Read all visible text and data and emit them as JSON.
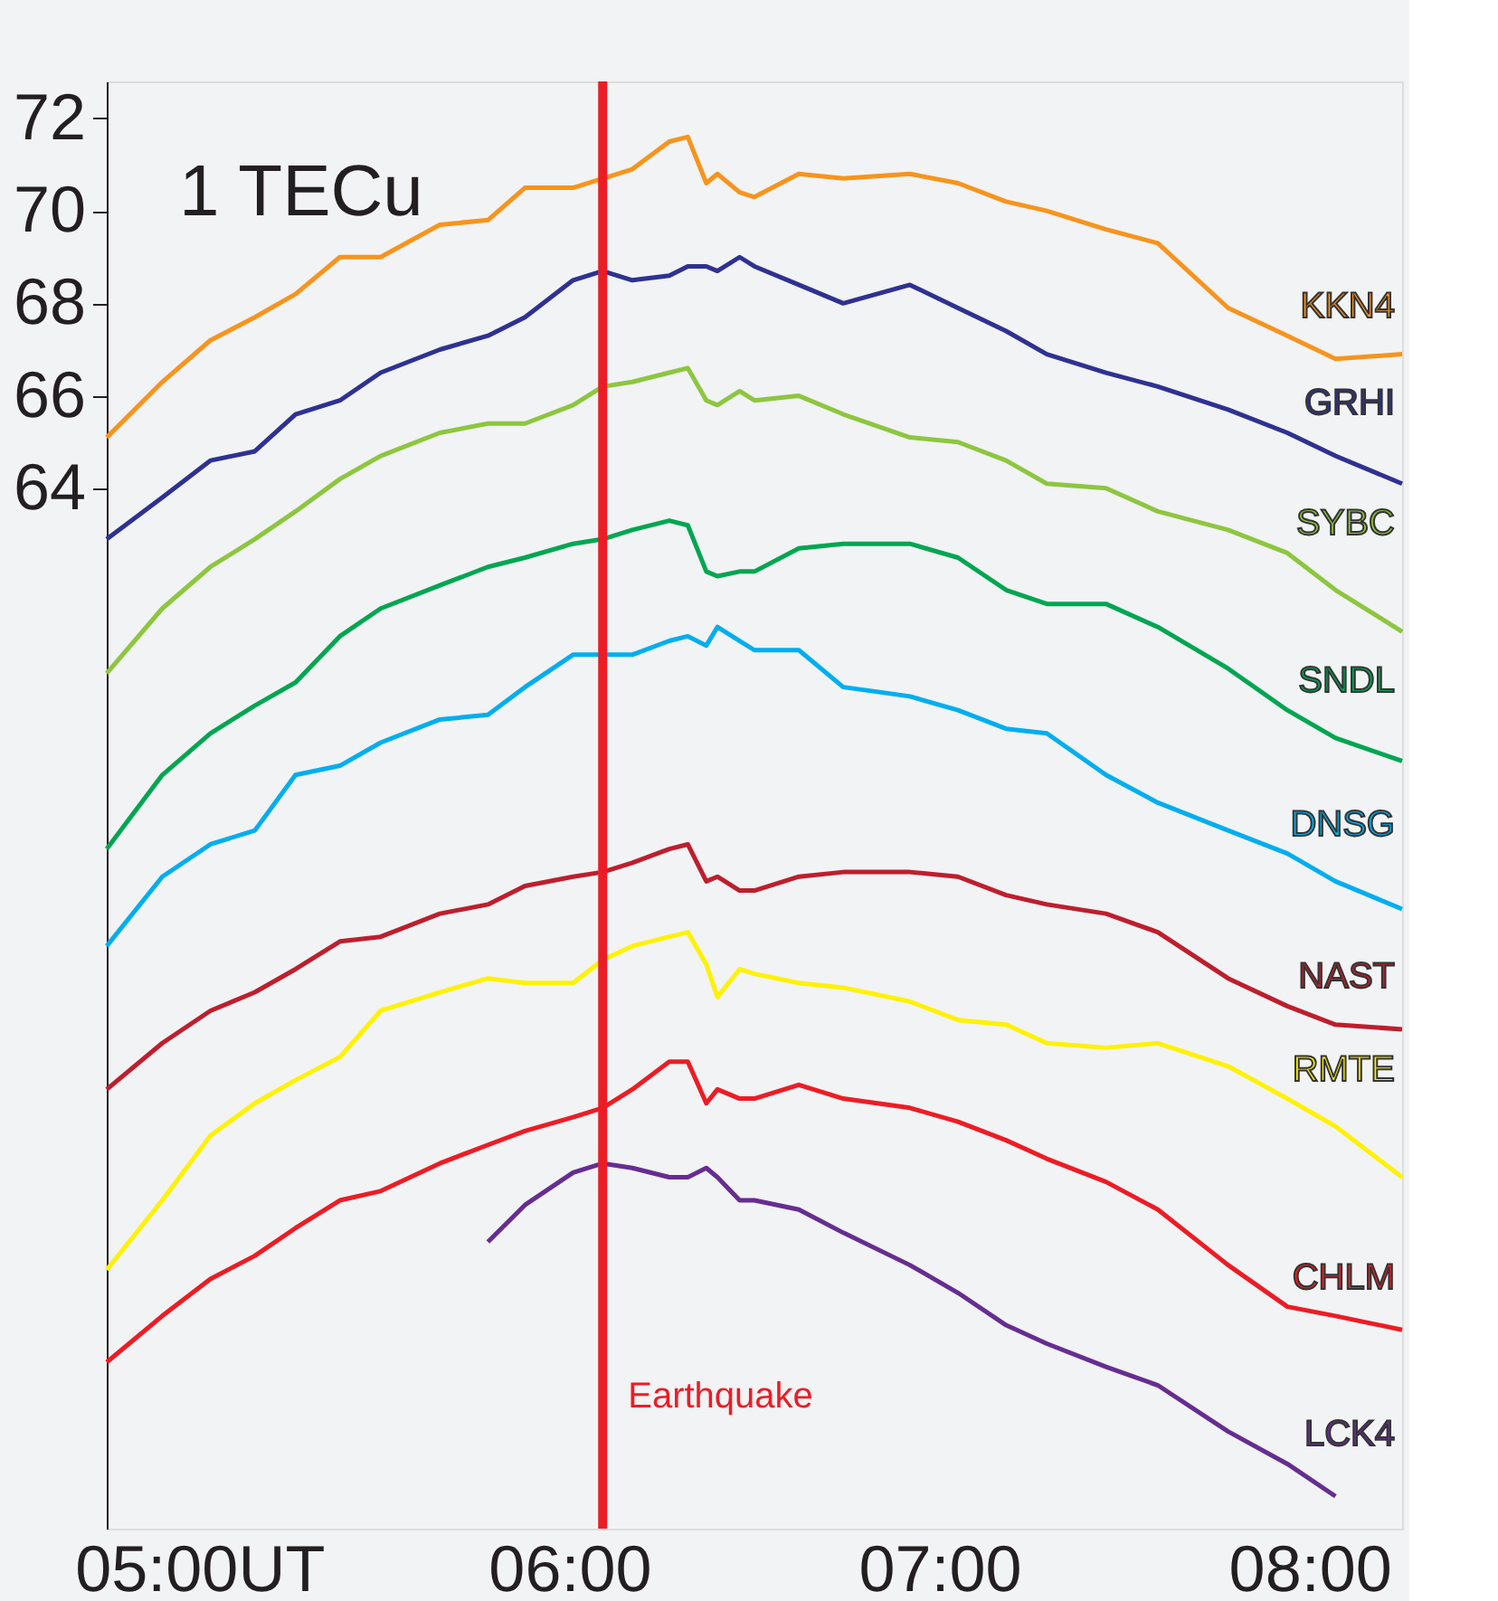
{
  "chart_data": {
    "type": "line",
    "x": [
      4.75,
      4.9,
      5.03,
      5.15,
      5.26,
      5.38,
      5.49,
      5.65,
      5.78,
      5.88,
      6.01,
      6.09,
      6.17,
      6.27,
      6.32,
      6.37,
      6.4,
      6.46,
      6.5,
      6.62,
      6.74,
      6.92,
      7.05,
      7.18,
      7.29,
      7.45,
      7.59,
      7.78,
      7.94,
      8.07,
      8.25
    ],
    "series": [
      {
        "name": "KKN4",
        "color": "#f7941d",
        "values": [
          65.1,
          66.3,
          67.2,
          67.7,
          68.2,
          69.0,
          69.0,
          69.7,
          69.8,
          70.5,
          70.5,
          70.7,
          70.9,
          71.5,
          71.6,
          70.6,
          70.8,
          70.4,
          70.3,
          70.8,
          70.7,
          70.8,
          70.6,
          70.2,
          70.0,
          69.6,
          69.3,
          67.9,
          67.3,
          66.8,
          66.9
        ]
      },
      {
        "name": "GRHI",
        "color": "#2e3192",
        "values": [
          62.9,
          63.8,
          64.6,
          64.8,
          65.6,
          65.9,
          66.5,
          67.0,
          67.3,
          67.7,
          68.5,
          68.7,
          68.5,
          68.6,
          68.8,
          68.8,
          68.7,
          69.0,
          68.8,
          68.4,
          68.0,
          68.4,
          67.9,
          67.4,
          66.9,
          66.5,
          66.2,
          65.7,
          65.2,
          64.7,
          64.1
        ]
      },
      {
        "name": "SYBC",
        "color": "#8dc63f",
        "values": [
          60.0,
          61.4,
          62.3,
          62.9,
          63.5,
          64.2,
          64.7,
          65.2,
          65.4,
          65.4,
          65.8,
          66.2,
          66.3,
          66.5,
          66.6,
          65.9,
          65.8,
          66.1,
          65.9,
          66.0,
          65.6,
          65.1,
          65.0,
          64.6,
          64.1,
          64.0,
          63.5,
          63.1,
          62.6,
          61.8,
          60.9
        ]
      },
      {
        "name": "SNDL",
        "color": "#00a651",
        "values": [
          56.2,
          57.8,
          58.7,
          59.3,
          59.8,
          60.8,
          61.4,
          61.9,
          62.3,
          62.5,
          62.8,
          62.9,
          63.1,
          63.3,
          63.2,
          62.2,
          62.1,
          62.2,
          62.2,
          62.7,
          62.8,
          62.8,
          62.5,
          61.8,
          61.5,
          61.5,
          61.0,
          60.1,
          59.2,
          58.6,
          58.1
        ]
      },
      {
        "name": "DNSG",
        "color": "#00aeef",
        "values": [
          54.1,
          55.6,
          56.3,
          56.6,
          57.8,
          58.0,
          58.5,
          59.0,
          59.1,
          59.7,
          60.4,
          60.4,
          60.4,
          60.7,
          60.8,
          60.6,
          61.0,
          60.7,
          60.5,
          60.5,
          59.7,
          59.5,
          59.2,
          58.8,
          58.7,
          57.8,
          57.2,
          56.6,
          56.1,
          55.5,
          54.9
        ]
      },
      {
        "name": "NAST",
        "color": "#be1e2d",
        "values": [
          51.0,
          52.0,
          52.7,
          53.1,
          53.6,
          54.2,
          54.3,
          54.8,
          55.0,
          55.4,
          55.6,
          55.7,
          55.9,
          56.2,
          56.3,
          55.5,
          55.6,
          55.3,
          55.3,
          55.6,
          55.7,
          55.7,
          55.6,
          55.2,
          55.0,
          54.8,
          54.4,
          53.4,
          52.8,
          52.4,
          52.3
        ]
      },
      {
        "name": "RMTE",
        "color": "#fff200",
        "values": [
          47.1,
          48.6,
          50.0,
          50.7,
          51.2,
          51.7,
          52.7,
          53.1,
          53.4,
          53.3,
          53.3,
          53.8,
          54.1,
          54.3,
          54.4,
          53.7,
          53.0,
          53.6,
          53.5,
          53.3,
          53.2,
          52.9,
          52.5,
          52.4,
          52.0,
          51.9,
          52.0,
          51.5,
          50.8,
          50.2,
          49.1
        ]
      },
      {
        "name": "CHLM",
        "color": "#ed1c24",
        "values": [
          45.1,
          46.1,
          46.9,
          47.4,
          48.0,
          48.6,
          48.8,
          49.4,
          49.8,
          50.1,
          50.4,
          50.6,
          51.0,
          51.6,
          51.6,
          50.7,
          51.0,
          50.8,
          50.8,
          51.1,
          50.8,
          50.6,
          50.3,
          49.9,
          49.5,
          49.0,
          48.4,
          47.2,
          46.3,
          46.1,
          45.8
        ]
      },
      {
        "name": "LCK4",
        "color": "#662d91",
        "values": [
          null,
          null,
          null,
          null,
          null,
          null,
          null,
          null,
          47.7,
          48.5,
          49.2,
          49.4,
          49.3,
          49.1,
          49.1,
          49.3,
          49.1,
          48.6,
          48.6,
          48.4,
          47.9,
          47.2,
          46.6,
          45.9,
          45.5,
          45.0,
          44.6,
          43.6,
          42.9,
          42.2,
          null
        ]
      }
    ],
    "xlim": [
      4.75,
      8.25
    ],
    "xticks": [
      {
        "value": 5,
        "label": "05:00UT"
      },
      {
        "value": 6,
        "label": "06:00"
      },
      {
        "value": 7,
        "label": "07:00"
      },
      {
        "value": 8,
        "label": "08:00"
      }
    ],
    "ylim": [
      41.5,
      72.8
    ],
    "yticks": [
      64,
      66,
      68,
      70,
      72
    ],
    "ref_lines": [
      {
        "axis": "x",
        "value": 6.09,
        "label": "Earthquake",
        "color": "#ed1c24"
      }
    ],
    "annotations": [
      "1 TECu"
    ],
    "grid": false,
    "legend": false,
    "marker": "none",
    "line_style": "solid"
  }
}
